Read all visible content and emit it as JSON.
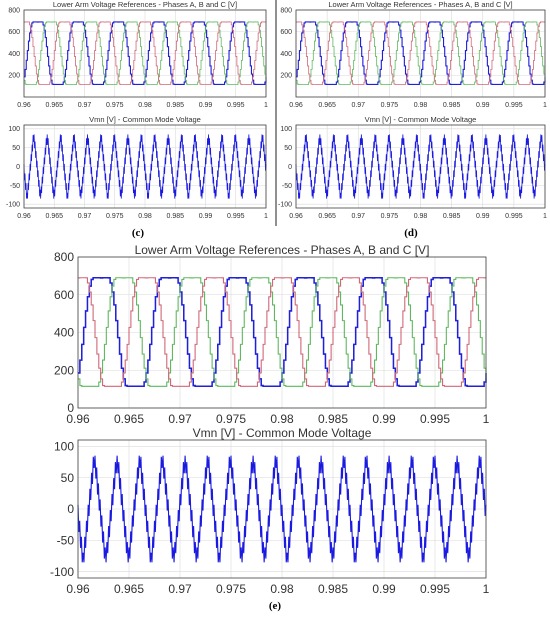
{
  "figure": {
    "panel_labels": [
      "(c)",
      "(d)",
      "(e)"
    ]
  },
  "colors": {
    "phase_a": "#2020d8",
    "phase_b": "#5fb85f",
    "phase_c": "#d06878",
    "vmn": "#1a1ae0",
    "grid": "#d9d9d9",
    "axes": "#404040"
  },
  "chart_data": [
    {
      "panel": "(c)",
      "type": "line",
      "title": "Lower Arm Voltage References - Phases A, B and C [V]",
      "xlabel": "",
      "ylabel": "",
      "x_ticks": [
        "0.96",
        "0.965",
        "0.97",
        "0.975",
        "0.98",
        "0.985",
        "0.99",
        "0.995",
        "1"
      ],
      "y_ticks": [
        "200",
        "400",
        "600",
        "800"
      ],
      "xlim": [
        0.96,
        1.0
      ],
      "ylim": [
        0,
        800
      ],
      "grid": true,
      "frequency_hz": 150,
      "mid_value": 400,
      "amplitude": 300,
      "third_harmonic": 0.1667,
      "series": [
        {
          "phase_deg": 0,
          "color_key": "phase_a",
          "values": {
            "min": 115,
            "max": 690
          }
        },
        {
          "phase_deg": -120,
          "color_key": "phase_b",
          "values": {
            "min": 115,
            "max": 690
          }
        },
        {
          "phase_deg": 120,
          "color_key": "phase_c",
          "values": {
            "min": 115,
            "max": 690
          }
        }
      ]
    },
    {
      "panel": "(c)",
      "type": "line",
      "title": "Vmn [V] - Common Mode Voltage",
      "xlabel": "",
      "ylabel": "",
      "x_ticks": [
        "0.96",
        "0.965",
        "0.97",
        "0.975",
        "0.98",
        "0.985",
        "0.99",
        "0.995",
        "1"
      ],
      "y_ticks": [
        "-100",
        "-50",
        "0",
        "50",
        "100"
      ],
      "xlim": [
        0.96,
        1.0
      ],
      "ylim": [
        -110,
        110
      ],
      "grid": true,
      "frequency_hz": 150,
      "peak": 85,
      "shape": "triangle",
      "series": [
        {
          "color_key": "vmn",
          "values": {
            "min": -85,
            "max": 85
          }
        }
      ]
    },
    {
      "panel": "(d)",
      "type": "line",
      "title": "Lower Arm Voltage References - Phases A, B and C [V]",
      "xlabel": "",
      "ylabel": "",
      "x_ticks": [
        "0.96",
        "0.965",
        "0.97",
        "0.975",
        "0.98",
        "0.985",
        "0.99",
        "0.995",
        "1"
      ],
      "y_ticks": [
        "200",
        "400",
        "600",
        "800"
      ],
      "xlim": [
        0.96,
        1.0
      ],
      "ylim": [
        0,
        800
      ],
      "grid": true,
      "frequency_hz": 150,
      "mid_value": 400,
      "amplitude": 300,
      "third_harmonic": 0.1667,
      "series": [
        {
          "phase_deg": 0,
          "color_key": "phase_a",
          "values": {
            "min": 115,
            "max": 690
          }
        },
        {
          "phase_deg": -120,
          "color_key": "phase_b",
          "values": {
            "min": 115,
            "max": 690
          }
        },
        {
          "phase_deg": 120,
          "color_key": "phase_c",
          "values": {
            "min": 115,
            "max": 690
          }
        }
      ]
    },
    {
      "panel": "(d)",
      "type": "line",
      "title": "Vmn [V] - Common Mode Voltage",
      "xlabel": "",
      "ylabel": "",
      "x_ticks": [
        "0.96",
        "0.965",
        "0.97",
        "0.975",
        "0.98",
        "0.985",
        "0.99",
        "0.995",
        "1"
      ],
      "y_ticks": [
        "-100",
        "-50",
        "0",
        "50",
        "100"
      ],
      "xlim": [
        0.96,
        1.0
      ],
      "ylim": [
        -110,
        110
      ],
      "grid": true,
      "frequency_hz": 150,
      "peak": 85,
      "shape": "triangle",
      "series": [
        {
          "color_key": "vmn",
          "values": {
            "min": -85,
            "max": 85
          }
        }
      ]
    },
    {
      "panel": "(e)",
      "type": "line",
      "title": "Lower Arm Voltage References - Phases A, B and C [V]",
      "xlabel": "",
      "ylabel": "",
      "x_ticks": [
        "0.96",
        "0.965",
        "0.97",
        "0.975",
        "0.98",
        "0.985",
        "0.99",
        "0.995",
        "1"
      ],
      "y_ticks": [
        "0",
        "200",
        "400",
        "600",
        "800"
      ],
      "xlim": [
        0.96,
        1.0
      ],
      "ylim": [
        0,
        800
      ],
      "grid": true,
      "frequency_hz": 150,
      "mid_value": 400,
      "amplitude": 300,
      "third_harmonic": 0.1667,
      "series": [
        {
          "phase_deg": 0,
          "color_key": "phase_a",
          "values": {
            "min": 115,
            "max": 690
          }
        },
        {
          "phase_deg": -120,
          "color_key": "phase_b",
          "values": {
            "min": 115,
            "max": 690
          }
        },
        {
          "phase_deg": 120,
          "color_key": "phase_c",
          "values": {
            "min": 115,
            "max": 690
          }
        }
      ]
    },
    {
      "panel": "(e)",
      "type": "line",
      "title": "Vmn [V] - Common Mode Voltage",
      "xlabel": "",
      "ylabel": "",
      "x_ticks": [
        "0.96",
        "0.965",
        "0.97",
        "0.975",
        "0.98",
        "0.985",
        "0.99",
        "0.995",
        "1"
      ],
      "y_ticks": [
        "-100",
        "-50",
        "0",
        "50",
        "100"
      ],
      "xlim": [
        0.96,
        1.0
      ],
      "ylim": [
        -110,
        110
      ],
      "grid": true,
      "frequency_hz": 150,
      "peak": 85,
      "shape": "triangle",
      "series": [
        {
          "color_key": "vmn",
          "values": {
            "min": -85,
            "max": 85
          }
        }
      ]
    }
  ]
}
